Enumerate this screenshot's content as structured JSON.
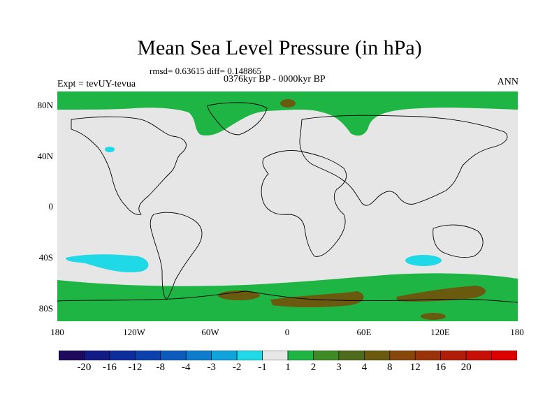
{
  "title": "Mean Sea Level Pressure (in hPa)",
  "stats": "rmsd= 0.63615 diff= 0.148865",
  "period": "0376kyr BP - 0000kyr BP",
  "experiment": "Expt = tevUY-tevua",
  "season": "ANN",
  "lat_labels": [
    "80N",
    "40N",
    "0",
    "40S",
    "80S"
  ],
  "lon_labels": [
    "180",
    "120W",
    "60W",
    "0",
    "60E",
    "120E",
    "180"
  ],
  "colorbar": {
    "colors": [
      "#1d0a5c",
      "#121a86",
      "#0f2c9c",
      "#0c41ad",
      "#0c5bbd",
      "#0e7ccd",
      "#12a3dc",
      "#1fd9e6",
      "#e6e6e6",
      "#1fb544",
      "#3e8a25",
      "#4e6a1c",
      "#6a5a10",
      "#86460c",
      "#9a320a",
      "#b11e08",
      "#c70f05",
      "#dc0000"
    ],
    "labels": [
      "-20",
      "-16",
      "-12",
      "-8",
      "-4",
      "-3",
      "-2",
      "-1",
      "1",
      "2",
      "3",
      "4",
      "8",
      "12",
      "16",
      "20"
    ]
  },
  "colors": {
    "neutral": "#e6e6e6",
    "positive_low": "#1fb544",
    "positive_mid": "#6a5a10",
    "negative_low": "#1fd9e6"
  }
}
